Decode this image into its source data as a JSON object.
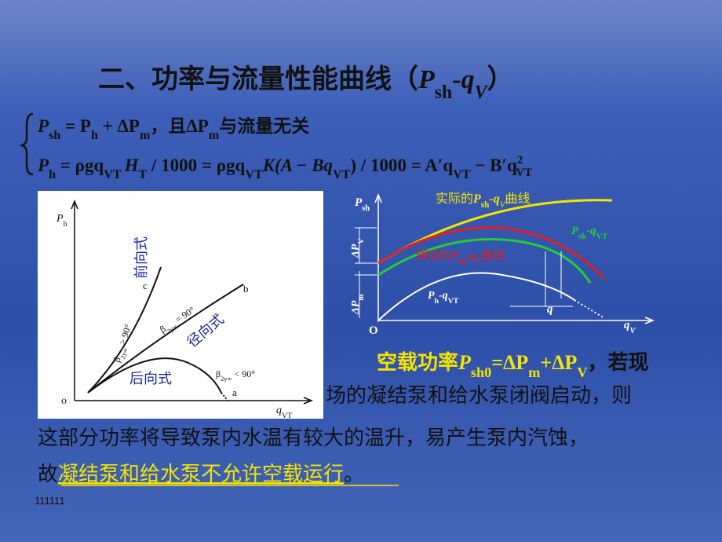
{
  "title": [
    "二、功率与流量性能曲线（",
    "P",
    "sh",
    "-q",
    "V",
    "）"
  ],
  "formula1": [
    "P",
    "sh",
    " = P",
    "h",
    " + ΔP",
    "m",
    "，且ΔP",
    "m",
    "与流量无关"
  ],
  "formula2": [
    "P",
    "h",
    " = ρgq",
    "VT",
    "H",
    "T",
    " / 1000 = ρgq",
    "VT",
    "K(A − Bq",
    "VT",
    ") / 1000 = A′q",
    "VT",
    " − B′q",
    "2",
    "VT"
  ],
  "left_diagram": {
    "y_label": [
      "P",
      "h"
    ],
    "x_label": [
      "q",
      "VT"
    ],
    "origin": "o",
    "curve_a": "a",
    "curve_b": "b",
    "curve_c": "c",
    "forward": "前向式",
    "radial": "径向式",
    "backward": "后向式",
    "angle_forward": [
      "β",
      "2y∞",
      " > 90°"
    ],
    "angle_radial": [
      "β",
      "2y∞",
      " = 90°"
    ],
    "angle_backward": [
      "β",
      "2y∞",
      " < 90°"
    ]
  },
  "right_diagram": {
    "y_label": [
      "P",
      "sh"
    ],
    "x_label": [
      "q",
      "V"
    ],
    "origin": "O",
    "delta_v": [
      "ΔP",
      "V"
    ],
    "delta_m": [
      "ΔP",
      "m"
    ],
    "q_label": "q",
    "actual": [
      "实际的",
      "P",
      "sh",
      "-q",
      "V",
      "曲线"
    ],
    "theory": [
      "理论的",
      "P",
      "sh",
      "-q",
      "V",
      "曲线"
    ],
    "green": [
      "P",
      "sh",
      "-q",
      "VT"
    ],
    "white": [
      "P",
      "h",
      "-q",
      "VT"
    ]
  },
  "paragraph": {
    "line1": [
      "空载功率",
      "P",
      "sh0",
      "=ΔP",
      "m",
      "+ΔP",
      "V",
      "，若现"
    ],
    "line2": "场的凝结泵和给水泵闭阀启动，则",
    "line3": "这部分功率将导致泵内水温有较大的温升，易产生泵内汽蚀，",
    "line4": [
      "故",
      "凝结泵和给水泵不允许空载运行",
      "。"
    ]
  },
  "footer": "111111"
}
